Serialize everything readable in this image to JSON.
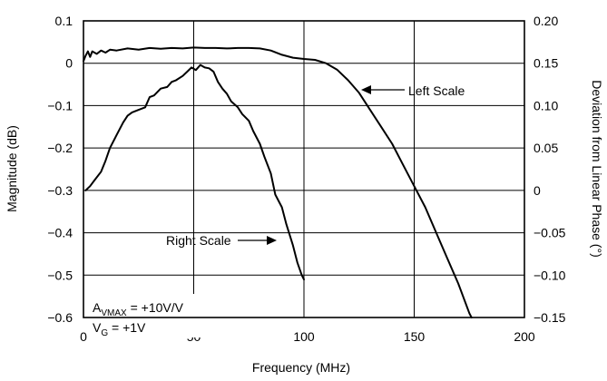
{
  "chart_data": {
    "type": "line",
    "xlabel": "Frequency (MHz)",
    "ylabel": "Magnitude (dB)",
    "y2label": "Deviation from Linear Phase (°)",
    "xlim": [
      0,
      200
    ],
    "ylim": [
      -0.6,
      0.1
    ],
    "y2lim": [
      -0.15,
      0.2
    ],
    "grid": true,
    "x_ticks": [
      "0",
      "50",
      "100",
      "150",
      "200"
    ],
    "y_ticks": [
      "0.1",
      "0",
      "−0.1",
      "−0.2",
      "−0.3",
      "−0.4",
      "−0.5",
      "−0.6"
    ],
    "y2_ticks": [
      "0.20",
      "0.15",
      "0.10",
      "0.05",
      "0",
      "−0.05",
      "−0.10",
      "−0.15"
    ],
    "series": [
      {
        "name": "Left Scale",
        "axis": "left",
        "x": [
          0,
          1,
          2,
          3,
          4,
          6,
          8,
          10,
          12,
          15,
          20,
          25,
          30,
          35,
          40,
          45,
          50,
          55,
          60,
          65,
          70,
          75,
          80,
          85,
          90,
          95,
          100,
          105,
          110,
          115,
          120,
          125,
          130,
          135,
          140,
          145,
          150,
          155,
          160,
          165,
          170,
          175,
          176
        ],
        "y": [
          0.005,
          0.018,
          0.028,
          0.015,
          0.028,
          0.022,
          0.03,
          0.025,
          0.032,
          0.03,
          0.035,
          0.032,
          0.036,
          0.034,
          0.036,
          0.035,
          0.037,
          0.036,
          0.036,
          0.035,
          0.036,
          0.036,
          0.035,
          0.03,
          0.02,
          0.013,
          0.01,
          0.008,
          0.0,
          -0.015,
          -0.04,
          -0.07,
          -0.11,
          -0.15,
          -0.19,
          -0.24,
          -0.29,
          -0.34,
          -0.4,
          -0.46,
          -0.52,
          -0.59,
          -0.6
        ]
      },
      {
        "name": "Right Scale",
        "axis": "right",
        "x": [
          1,
          3,
          5,
          8,
          10,
          12,
          15,
          18,
          20,
          22,
          25,
          28,
          30,
          32,
          35,
          38,
          40,
          42,
          45,
          47,
          49,
          51,
          53,
          55,
          57,
          59,
          61,
          63,
          65,
          67,
          70,
          72,
          75,
          77,
          80,
          82,
          85,
          87,
          90,
          92,
          95,
          97,
          99,
          100
        ],
        "y": [
          0.0,
          0.005,
          0.012,
          0.022,
          0.035,
          0.05,
          0.065,
          0.08,
          0.088,
          0.092,
          0.095,
          0.098,
          0.11,
          0.112,
          0.12,
          0.122,
          0.128,
          0.13,
          0.135,
          0.14,
          0.145,
          0.142,
          0.148,
          0.145,
          0.144,
          0.14,
          0.128,
          0.12,
          0.114,
          0.105,
          0.098,
          0.09,
          0.082,
          0.07,
          0.055,
          0.04,
          0.02,
          -0.005,
          -0.02,
          -0.04,
          -0.065,
          -0.085,
          -0.1,
          -0.105
        ]
      }
    ],
    "annotations": [
      {
        "text": "Left Scale"
      },
      {
        "text": "Right Scale"
      }
    ],
    "legend_box": {
      "line1_main": "A",
      "line1_sub": "VMAX",
      "line1_rest": " = +10V/V",
      "line2_main": "V",
      "line2_sub": "G",
      "line2_rest": " = +1V"
    }
  }
}
